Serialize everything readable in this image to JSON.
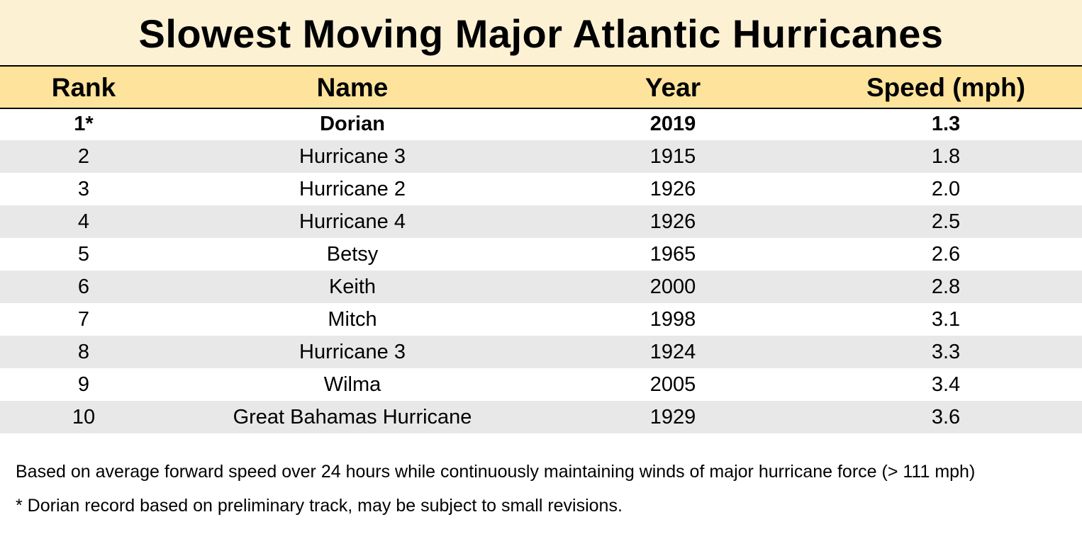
{
  "chart_data": {
    "type": "table",
    "title": "Slowest Moving Major Atlantic Hurricanes",
    "columns": [
      "Rank",
      "Name",
      "Year",
      "Speed (mph)"
    ],
    "rows": [
      {
        "rank": "1*",
        "name": "Dorian",
        "year": "2019",
        "speed": "1.3",
        "highlight": true
      },
      {
        "rank": "2",
        "name": "Hurricane 3",
        "year": "1915",
        "speed": "1.8",
        "highlight": false
      },
      {
        "rank": "3",
        "name": "Hurricane 2",
        "year": "1926",
        "speed": "2.0",
        "highlight": false
      },
      {
        "rank": "4",
        "name": "Hurricane 4",
        "year": "1926",
        "speed": "2.5",
        "highlight": false
      },
      {
        "rank": "5",
        "name": "Betsy",
        "year": "1965",
        "speed": "2.6",
        "highlight": false
      },
      {
        "rank": "6",
        "name": "Keith",
        "year": "2000",
        "speed": "2.8",
        "highlight": false
      },
      {
        "rank": "7",
        "name": "Mitch",
        "year": "1998",
        "speed": "3.1",
        "highlight": false
      },
      {
        "rank": "8",
        "name": "Hurricane 3",
        "year": "1924",
        "speed": "3.3",
        "highlight": false
      },
      {
        "rank": "9",
        "name": "Wilma",
        "year": "2005",
        "speed": "3.4",
        "highlight": false
      },
      {
        "rank": "10",
        "name": "Great Bahamas Hurricane",
        "year": "1929",
        "speed": "3.6",
        "highlight": false
      }
    ],
    "footnotes": [
      "Based on average forward speed over 24 hours  while continuously maintaining winds of major hurricane force (> 111 mph)",
      "* Dorian record based on preliminary track, may be subject to small revisions."
    ],
    "colors": {
      "title_background": "#fdf1d4",
      "header_background": "#fde39b",
      "stripe_background": "#e8e8e8"
    }
  }
}
